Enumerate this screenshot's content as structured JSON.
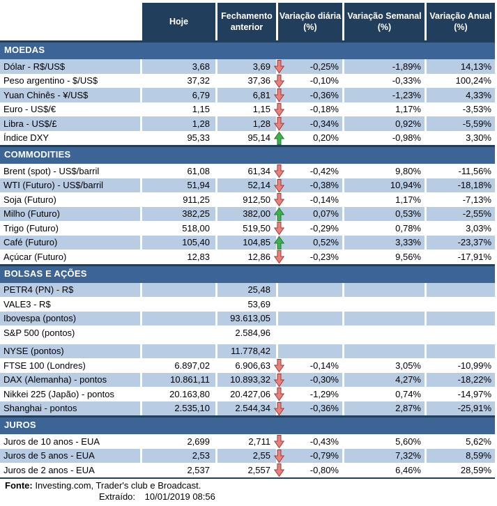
{
  "colors": {
    "header_bg": "#213E5C",
    "band_bg": "#3C6596",
    "stripe": "#B8CCE4",
    "border": "#213E5C",
    "arrow_down_fill": "#E4817C",
    "arrow_down_stroke": "#A23936",
    "arrow_up_fill": "#3FAE4C",
    "arrow_up_stroke": "#1D7B2F"
  },
  "chart_data": {
    "type": "table",
    "columns": [
      "",
      "Hoje",
      "Fechamento anterior",
      "Variação diária (%)",
      "Variação Semanal (%)",
      "Variação Anual (%)"
    ],
    "sections": [
      {
        "title": "MOEDAS",
        "zebra_start": "shaded",
        "rows": [
          {
            "label": "Dólar - R$/US$",
            "hoje": "3,68",
            "fechamento": "3,69",
            "arrow": "down",
            "var_diaria": "-0,25%",
            "var_semanal": "-1,89%",
            "var_anual": "14,13%"
          },
          {
            "label": "Peso argentino - $/US$",
            "hoje": "37,32",
            "fechamento": "37,36",
            "arrow": "down",
            "var_diaria": "-0,10%",
            "var_semanal": "-0,33%",
            "var_anual": "100,24%"
          },
          {
            "label": "Yuan Chinês - ¥/US$",
            "hoje": "6,79",
            "fechamento": "6,81",
            "arrow": "down",
            "var_diaria": "-0,36%",
            "var_semanal": "-1,23%",
            "var_anual": "4,33%"
          },
          {
            "label": "Euro - US$/€",
            "hoje": "1,15",
            "fechamento": "1,15",
            "arrow": "down",
            "var_diaria": "-0,18%",
            "var_semanal": "1,17%",
            "var_anual": "-3,53%"
          },
          {
            "label": "Libra - US$/£",
            "hoje": "1,28",
            "fechamento": "1,28",
            "arrow": "down",
            "var_diaria": "-0,34%",
            "var_semanal": "0,92%",
            "var_anual": "-5,59%"
          },
          {
            "label": "Índice DXY",
            "hoje": "95,33",
            "fechamento": "95,14",
            "arrow": "up",
            "var_diaria": "0,20%",
            "var_semanal": "-0,98%",
            "var_anual": "3,30%"
          }
        ]
      },
      {
        "title": "COMMODITIES",
        "zebra_start": "white",
        "rows": [
          {
            "label": "Brent (spot) - US$/barril",
            "hoje": "61,08",
            "fechamento": "61,34",
            "arrow": "down",
            "var_diaria": "-0,42%",
            "var_semanal": "9,80%",
            "var_anual": "-11,56%"
          },
          {
            "label": "WTI (Futuro) - US$/barril",
            "hoje": "51,94",
            "fechamento": "52,14",
            "arrow": "down",
            "var_diaria": "-0,38%",
            "var_semanal": "10,94%",
            "var_anual": "-18,18%"
          },
          {
            "label": "Soja (Futuro)",
            "hoje": "911,25",
            "fechamento": "912,50",
            "arrow": "down",
            "var_diaria": "-0,14%",
            "var_semanal": "1,17%",
            "var_anual": "-7,13%"
          },
          {
            "label": "Milho (Futuro)",
            "hoje": "382,25",
            "fechamento": "382,00",
            "arrow": "up",
            "var_diaria": "0,07%",
            "var_semanal": "0,53%",
            "var_anual": "-2,55%"
          },
          {
            "label": "Trigo (Futuro)",
            "hoje": "518,00",
            "fechamento": "519,50",
            "arrow": "down",
            "var_diaria": "-0,29%",
            "var_semanal": "0,78%",
            "var_anual": "3,03%"
          },
          {
            "label": "Café (Futuro)",
            "hoje": "105,40",
            "fechamento": "104,85",
            "arrow": "up",
            "var_diaria": "0,52%",
            "var_semanal": "3,33%",
            "var_anual": "-23,37%"
          },
          {
            "label": "Açúcar (Futuro)",
            "hoje": "12,83",
            "fechamento": "12,86",
            "arrow": "down",
            "var_diaria": "-0,23%",
            "var_semanal": "9,56%",
            "var_anual": "-17,91%"
          }
        ]
      },
      {
        "title": "BOLSAS E AÇÕES",
        "zebra_start": "shaded",
        "rows": [
          {
            "label": "PETR4 (PN) - R$",
            "hoje": "",
            "fechamento": "25,48",
            "arrow": "",
            "var_diaria": "",
            "var_semanal": "",
            "var_anual": ""
          },
          {
            "label": "VALE3 - R$",
            "hoje": "",
            "fechamento": "53,69",
            "arrow": "",
            "var_diaria": "",
            "var_semanal": "",
            "var_anual": ""
          },
          {
            "label": "Ibovespa (pontos)",
            "hoje": "",
            "fechamento": "93.613,05",
            "arrow": "",
            "var_diaria": "",
            "var_semanal": "",
            "var_anual": ""
          },
          {
            "label": "S&P 500 (pontos)",
            "hoje": "",
            "fechamento": "2.584,96",
            "arrow": "",
            "var_diaria": "",
            "var_semanal": "",
            "var_anual": ""
          },
          {
            "label": "NYSE (pontos)",
            "hoje": "",
            "fechamento": "11.778,42",
            "arrow": "",
            "var_diaria": "",
            "var_semanal": "",
            "var_anual": "",
            "gap_before": true
          },
          {
            "label": "FTSE 100 (Londres)",
            "hoje": "6.897,02",
            "fechamento": "6.906,63",
            "arrow": "down",
            "var_diaria": "-0,14%",
            "var_semanal": "3,05%",
            "var_anual": "-10,99%"
          },
          {
            "label": "DAX (Alemanha) - pontos",
            "hoje": "10.861,11",
            "fechamento": "10.893,32",
            "arrow": "down",
            "var_diaria": "-0,30%",
            "var_semanal": "4,27%",
            "var_anual": "-18,22%"
          },
          {
            "label": "Nikkei 225 (Japão) - pontos",
            "hoje": "20.163,80",
            "fechamento": "20.427,06",
            "arrow": "down",
            "var_diaria": "-1,29%",
            "var_semanal": "0,74%",
            "var_anual": "-14,97%"
          },
          {
            "label": "Shanghai - pontos",
            "hoje": "2.535,10",
            "fechamento": "2.544,34",
            "arrow": "down",
            "var_diaria": "-0,36%",
            "var_semanal": "2,87%",
            "var_anual": "-25,91%"
          }
        ]
      },
      {
        "title": "JUROS",
        "zebra_start": "white",
        "rows": [
          {
            "label": "Juros de 10 anos - EUA",
            "hoje": "2,699",
            "fechamento": "2,711",
            "arrow": "down",
            "var_diaria": "-0,43%",
            "var_semanal": "5,60%",
            "var_anual": "5,62%"
          },
          {
            "label": "Juros de 5 anos - EUA",
            "hoje": "2,53",
            "fechamento": "2,55",
            "arrow": "down",
            "var_diaria": "-0,79%",
            "var_semanal": "7,32%",
            "var_anual": "8,59%"
          },
          {
            "label": "Juros de 2 anos - EUA",
            "hoje": "2,537",
            "fechamento": "2,557",
            "arrow": "down",
            "var_diaria": "-0,80%",
            "var_semanal": "6,46%",
            "var_anual": "28,59%"
          }
        ]
      }
    ]
  },
  "footer": {
    "fonte_label": "Fonte:",
    "fonte_text": "Investing.com, Trader's club e Broadcast.",
    "extraido_label": "Extraído:",
    "extraido_value": "10/01/2019 08:56"
  }
}
